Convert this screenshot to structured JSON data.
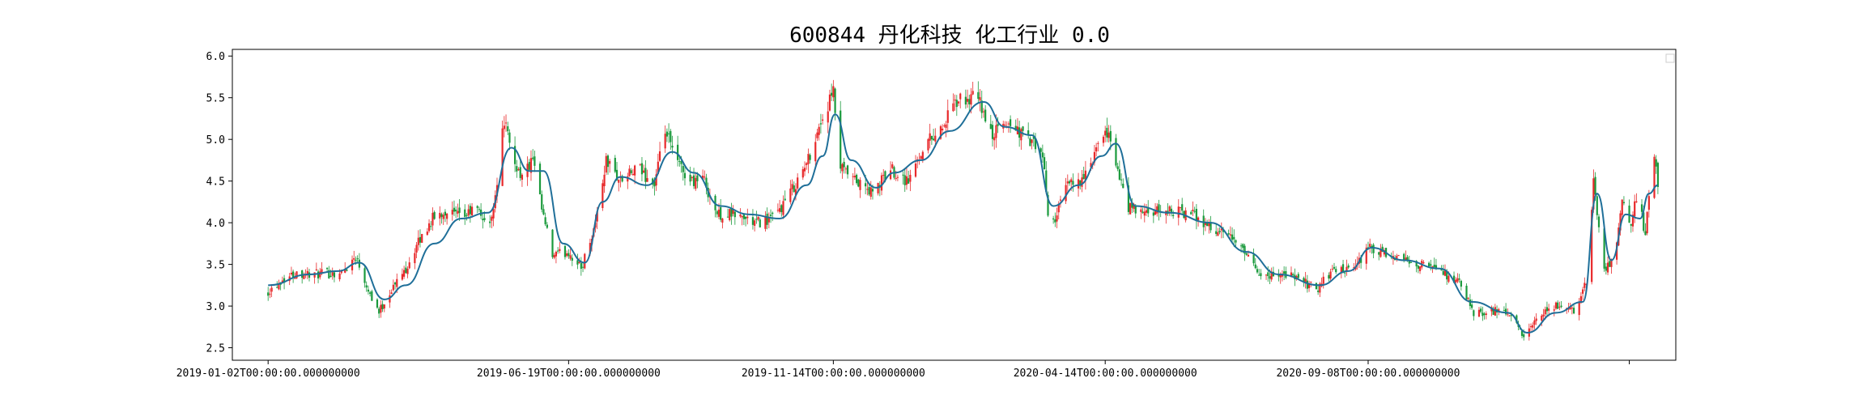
{
  "chart_data": {
    "type": "candlestick",
    "title": "600844 丹化科技 化工行业 0.0",
    "xlabel": "",
    "ylabel": "",
    "ylim": [
      2.35,
      6.08
    ],
    "yticks": [
      2.5,
      3.0,
      3.5,
      4.0,
      4.5,
      5.0,
      5.5,
      6.0
    ],
    "ytick_labels": [
      "2.5",
      "3.0",
      "3.5",
      "4.0",
      "4.5",
      "5.0",
      "5.5",
      "6.0"
    ],
    "xlim": [
      "2018-12-13",
      "2021-02-27"
    ],
    "xticks": [
      "2019-01-02",
      "2019-06-19",
      "2019-11-14",
      "2020-04-14",
      "2020-09-08",
      "2021-02-01"
    ],
    "xtick_labels": [
      "2019-01-02T00:00:00.000000000",
      "2019-06-19T00:00:00.000000000",
      "2019-11-14T00:00:00.000000000",
      "2020-04-14T00:00:00.000000000",
      "2020-09-08T00:00:00.000000000",
      ""
    ],
    "grid": false,
    "legend": "top-right, empty",
    "colors": {
      "up": "#e8292b",
      "down": "#1a9a3c",
      "ma": "#1f6f99"
    },
    "close_path": [
      [
        "2019-01-02",
        3.18
      ],
      [
        "2019-01-10",
        3.32
      ],
      [
        "2019-01-18",
        3.4
      ],
      [
        "2019-01-28",
        3.38
      ],
      [
        "2019-02-12",
        3.4
      ],
      [
        "2019-02-20",
        3.6
      ],
      [
        "2019-02-28",
        3.15
      ],
      [
        "2019-03-05",
        2.93
      ],
      [
        "2019-03-12",
        3.2
      ],
      [
        "2019-03-20",
        3.45
      ],
      [
        "2019-03-28",
        3.8
      ],
      [
        "2019-04-04",
        4.05
      ],
      [
        "2019-04-12",
        4.15
      ],
      [
        "2019-04-20",
        4.05
      ],
      [
        "2019-04-28",
        4.18
      ],
      [
        "2019-05-06",
        3.95
      ],
      [
        "2019-05-10",
        4.5
      ],
      [
        "2019-05-14",
        5.25
      ],
      [
        "2019-05-18",
        4.8
      ],
      [
        "2019-05-24",
        4.55
      ],
      [
        "2019-05-30",
        4.75
      ],
      [
        "2019-06-04",
        4.15
      ],
      [
        "2019-06-10",
        3.6
      ],
      [
        "2019-06-19",
        3.65
      ],
      [
        "2019-06-26",
        3.45
      ],
      [
        "2019-07-04",
        4.0
      ],
      [
        "2019-07-10",
        4.75
      ],
      [
        "2019-07-18",
        4.5
      ],
      [
        "2019-07-28",
        4.65
      ],
      [
        "2019-08-06",
        4.45
      ],
      [
        "2019-08-12",
        5.1
      ],
      [
        "2019-08-18",
        4.75
      ],
      [
        "2019-08-26",
        4.5
      ],
      [
        "2019-09-02",
        4.55
      ],
      [
        "2019-09-10",
        4.1
      ],
      [
        "2019-09-20",
        4.1
      ],
      [
        "2019-10-01",
        4.0
      ],
      [
        "2019-10-12",
        4.05
      ],
      [
        "2019-10-22",
        4.4
      ],
      [
        "2019-10-30",
        4.7
      ],
      [
        "2019-11-06",
        5.15
      ],
      [
        "2019-11-14",
        5.55
      ],
      [
        "2019-11-18",
        4.65
      ],
      [
        "2019-11-26",
        4.5
      ],
      [
        "2019-12-06",
        4.35
      ],
      [
        "2019-12-16",
        4.65
      ],
      [
        "2019-12-26",
        4.5
      ],
      [
        "2020-01-04",
        4.95
      ],
      [
        "2020-01-14",
        5.15
      ],
      [
        "2020-01-22",
        5.45
      ],
      [
        "2020-02-03",
        5.5
      ],
      [
        "2020-02-10",
        5.05
      ],
      [
        "2020-02-20",
        5.2
      ],
      [
        "2020-03-02",
        5.0
      ],
      [
        "2020-03-10",
        4.8
      ],
      [
        "2020-03-14",
        3.9
      ],
      [
        "2020-03-24",
        4.45
      ],
      [
        "2020-04-03",
        4.55
      ],
      [
        "2020-04-10",
        4.9
      ],
      [
        "2020-04-16",
        5.1
      ],
      [
        "2020-04-20",
        4.7
      ],
      [
        "2020-04-26",
        4.2
      ],
      [
        "2020-05-06",
        4.1
      ],
      [
        "2020-05-20",
        4.15
      ],
      [
        "2020-06-02",
        4.1
      ],
      [
        "2020-06-15",
        3.9
      ],
      [
        "2020-06-25",
        3.8
      ],
      [
        "2020-07-05",
        3.5
      ],
      [
        "2020-07-12",
        3.35
      ],
      [
        "2020-07-22",
        3.4
      ],
      [
        "2020-08-02",
        3.3
      ],
      [
        "2020-08-10",
        3.2
      ],
      [
        "2020-08-20",
        3.45
      ],
      [
        "2020-08-30",
        3.4
      ],
      [
        "2020-09-08",
        3.7
      ],
      [
        "2020-09-18",
        3.6
      ],
      [
        "2020-09-28",
        3.55
      ],
      [
        "2020-10-08",
        3.5
      ],
      [
        "2020-10-20",
        3.4
      ],
      [
        "2020-10-30",
        3.25
      ],
      [
        "2020-11-06",
        2.9
      ],
      [
        "2020-11-16",
        2.95
      ],
      [
        "2020-11-26",
        2.9
      ],
      [
        "2020-12-04",
        2.62
      ],
      [
        "2020-12-12",
        2.85
      ],
      [
        "2020-12-22",
        3.0
      ],
      [
        "2021-01-02",
        2.95
      ],
      [
        "2021-01-08",
        3.3
      ],
      [
        "2021-01-12",
        4.5
      ],
      [
        "2021-01-18",
        3.45
      ],
      [
        "2021-01-24",
        3.6
      ],
      [
        "2021-01-28",
        4.25
      ],
      [
        "2021-02-02",
        3.95
      ],
      [
        "2021-02-06",
        4.45
      ],
      [
        "2021-02-10",
        3.8
      ],
      [
        "2021-02-14",
        4.9
      ],
      [
        "2021-02-17",
        4.45
      ]
    ],
    "ma_path": [
      [
        "2019-01-02",
        3.25
      ],
      [
        "2019-01-25",
        3.38
      ],
      [
        "2019-02-10",
        3.42
      ],
      [
        "2019-02-22",
        3.52
      ],
      [
        "2019-03-08",
        3.08
      ],
      [
        "2019-03-20",
        3.25
      ],
      [
        "2019-04-05",
        3.75
      ],
      [
        "2019-04-20",
        4.05
      ],
      [
        "2019-05-05",
        4.12
      ],
      [
        "2019-05-18",
        4.9
      ],
      [
        "2019-05-28",
        4.62
      ],
      [
        "2019-06-05",
        4.62
      ],
      [
        "2019-06-16",
        3.75
      ],
      [
        "2019-06-28",
        3.52
      ],
      [
        "2019-07-08",
        4.25
      ],
      [
        "2019-07-18",
        4.55
      ],
      [
        "2019-08-02",
        4.45
      ],
      [
        "2019-08-16",
        4.85
      ],
      [
        "2019-08-28",
        4.6
      ],
      [
        "2019-09-12",
        4.2
      ],
      [
        "2019-09-28",
        4.1
      ],
      [
        "2019-10-15",
        4.05
      ],
      [
        "2019-10-30",
        4.45
      ],
      [
        "2019-11-08",
        4.8
      ],
      [
        "2019-11-15",
        5.3
      ],
      [
        "2019-11-24",
        4.75
      ],
      [
        "2019-12-08",
        4.42
      ],
      [
        "2019-12-18",
        4.6
      ],
      [
        "2020-01-02",
        4.75
      ],
      [
        "2020-01-18",
        5.1
      ],
      [
        "2020-02-06",
        5.45
      ],
      [
        "2020-02-18",
        5.15
      ],
      [
        "2020-03-04",
        5.05
      ],
      [
        "2020-03-16",
        4.2
      ],
      [
        "2020-03-30",
        4.45
      ],
      [
        "2020-04-12",
        4.8
      ],
      [
        "2020-04-20",
        4.95
      ],
      [
        "2020-05-01",
        4.2
      ],
      [
        "2020-05-20",
        4.12
      ],
      [
        "2020-06-12",
        4.0
      ],
      [
        "2020-07-02",
        3.65
      ],
      [
        "2020-07-20",
        3.38
      ],
      [
        "2020-08-12",
        3.25
      ],
      [
        "2020-08-28",
        3.42
      ],
      [
        "2020-09-10",
        3.7
      ],
      [
        "2020-09-28",
        3.55
      ],
      [
        "2020-10-18",
        3.45
      ],
      [
        "2020-11-05",
        3.05
      ],
      [
        "2020-11-25",
        2.92
      ],
      [
        "2020-12-06",
        2.68
      ],
      [
        "2020-12-22",
        2.92
      ],
      [
        "2021-01-06",
        3.05
      ],
      [
        "2021-01-14",
        4.35
      ],
      [
        "2021-01-22",
        3.55
      ],
      [
        "2021-01-30",
        4.1
      ],
      [
        "2021-02-07",
        4.05
      ],
      [
        "2021-02-12",
        4.35
      ],
      [
        "2021-02-17",
        4.45
      ]
    ]
  }
}
